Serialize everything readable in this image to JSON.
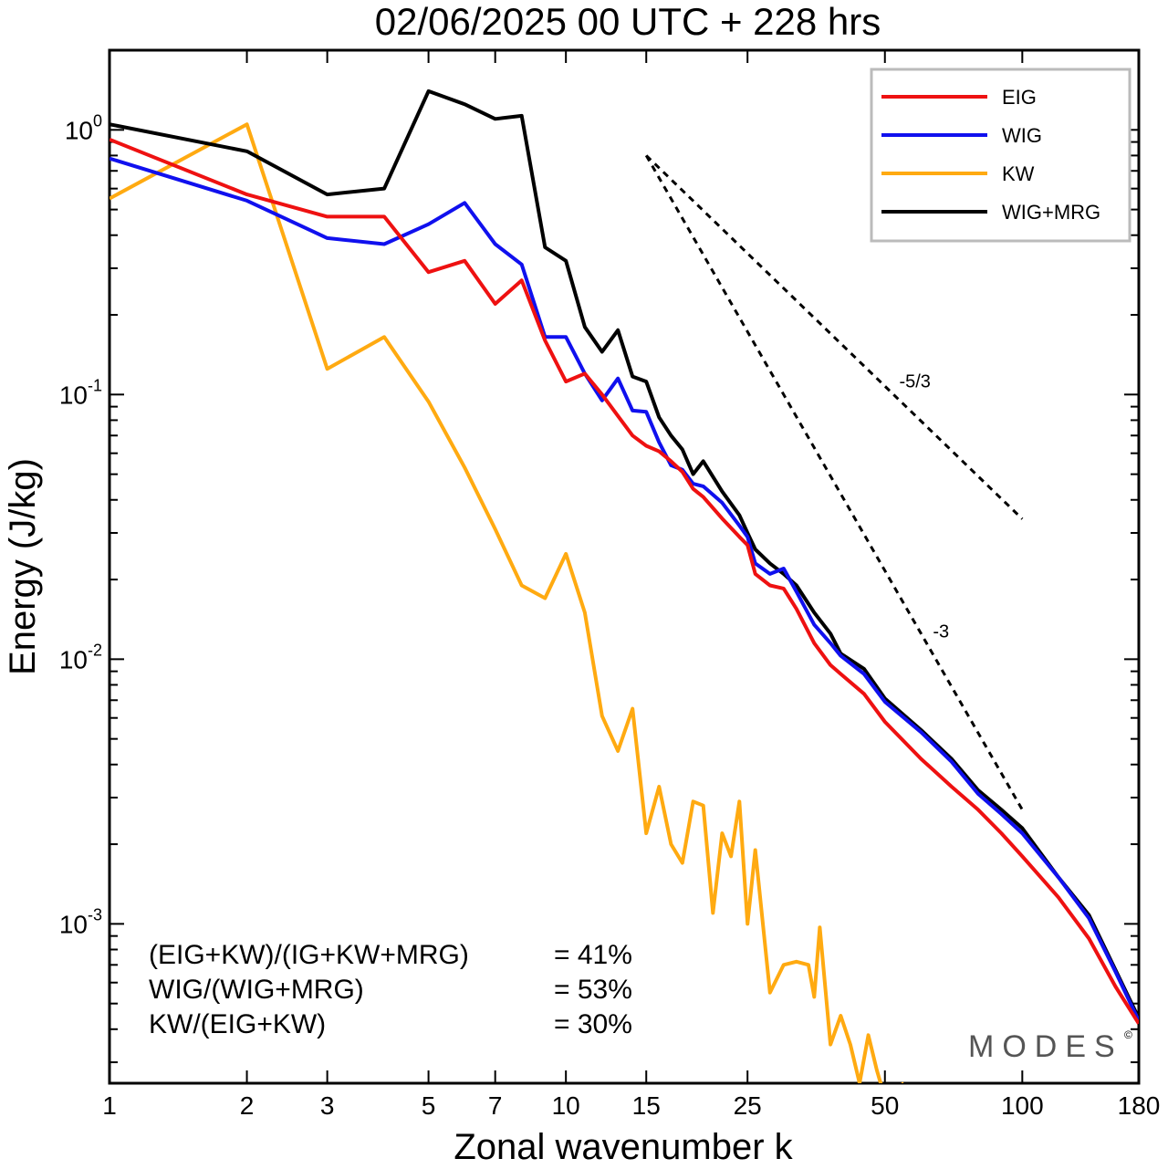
{
  "chart_data": {
    "type": "line",
    "title": "02/06/2025  00 UTC  + 228 hrs",
    "xlabel": "Zonal wavenumber k",
    "ylabel": "Energy (J/kg)",
    "x_scale": "log",
    "y_scale": "log",
    "xlim": [
      1,
      180
    ],
    "ylim": [
      0.00025,
      2.0
    ],
    "x_ticks": [
      1,
      2,
      3,
      5,
      7,
      10,
      15,
      25,
      50,
      100,
      180
    ],
    "x_tick_labels": [
      "1",
      "2",
      "3",
      "5",
      "7",
      "10",
      "15",
      "25",
      "50",
      "100",
      "180"
    ],
    "y_ticks": [
      {
        "value": 1,
        "base": "10",
        "exp": "0"
      },
      {
        "value": 0.1,
        "base": "10",
        "exp": "-1"
      },
      {
        "value": 0.01,
        "base": "10",
        "exp": "-2"
      },
      {
        "value": 0.001,
        "base": "10",
        "exp": "-3"
      }
    ],
    "grid": false,
    "legend_position": "top-right",
    "series": [
      {
        "name": "EIG",
        "color": "#ee1111",
        "x": [
          1,
          2,
          3,
          4,
          5,
          6,
          7,
          8,
          9,
          10,
          11,
          12,
          13,
          14,
          15,
          16,
          17,
          18,
          19,
          20,
          22,
          24,
          25,
          26,
          28,
          30,
          32,
          35,
          38,
          40,
          45,
          50,
          60,
          70,
          80,
          90,
          100,
          120,
          140,
          160,
          180
        ],
        "y": [
          0.92,
          0.57,
          0.47,
          0.47,
          0.29,
          0.32,
          0.22,
          0.27,
          0.16,
          0.112,
          0.12,
          0.1,
          0.083,
          0.07,
          0.064,
          0.061,
          0.056,
          0.051,
          0.044,
          0.041,
          0.034,
          0.029,
          0.027,
          0.021,
          0.019,
          0.0185,
          0.0155,
          0.0115,
          0.0095,
          0.0088,
          0.0074,
          0.0058,
          0.0042,
          0.0033,
          0.0027,
          0.0022,
          0.0018,
          0.00126,
          0.00088,
          0.00058,
          0.00042
        ]
      },
      {
        "name": "WIG",
        "color": "#1010ee",
        "x": [
          1,
          2,
          3,
          4,
          5,
          6,
          7,
          8,
          9,
          10,
          11,
          12,
          13,
          14,
          15,
          16,
          17,
          18,
          19,
          20,
          22,
          24,
          25,
          26,
          28,
          30,
          32,
          35,
          38,
          40,
          45,
          50,
          60,
          70,
          80,
          90,
          100,
          120,
          140,
          160,
          180
        ],
        "y": [
          0.78,
          0.54,
          0.39,
          0.37,
          0.44,
          0.53,
          0.37,
          0.31,
          0.165,
          0.165,
          0.12,
          0.095,
          0.115,
          0.087,
          0.086,
          0.066,
          0.054,
          0.052,
          0.046,
          0.045,
          0.039,
          0.032,
          0.029,
          0.023,
          0.021,
          0.022,
          0.018,
          0.0135,
          0.0115,
          0.0103,
          0.0088,
          0.0069,
          0.0053,
          0.0041,
          0.0031,
          0.0026,
          0.0022,
          0.0015,
          0.00105,
          0.00066,
          0.00043
        ]
      },
      {
        "name": "KW",
        "color": "#ffaa11",
        "x": [
          1,
          2,
          3,
          4,
          5,
          6,
          7,
          8,
          9,
          10,
          11,
          12,
          13,
          14,
          15,
          16,
          17,
          18,
          19,
          20,
          21,
          22,
          23,
          24,
          25,
          26,
          28,
          30,
          32,
          34,
          35,
          36,
          38,
          40,
          42,
          44,
          46,
          48,
          50,
          55
        ],
        "y": [
          0.55,
          1.05,
          0.125,
          0.165,
          0.094,
          0.053,
          0.031,
          0.019,
          0.017,
          0.025,
          0.015,
          0.0061,
          0.0045,
          0.0065,
          0.0022,
          0.0033,
          0.002,
          0.0017,
          0.0029,
          0.0028,
          0.0011,
          0.0022,
          0.0018,
          0.0029,
          0.001,
          0.0019,
          0.00055,
          0.0007,
          0.00072,
          0.0007,
          0.00053,
          0.00097,
          0.00035,
          0.00045,
          0.00035,
          0.00025,
          0.00038,
          0.00028,
          0.00022,
          0.00025
        ]
      },
      {
        "name": "WIG+MRG",
        "color": "#000000",
        "x": [
          1,
          2,
          3,
          4,
          5,
          6,
          7,
          8,
          9,
          10,
          11,
          12,
          13,
          14,
          15,
          16,
          17,
          18,
          19,
          20,
          22,
          24,
          25,
          26,
          28,
          30,
          32,
          35,
          38,
          40,
          45,
          50,
          60,
          70,
          80,
          90,
          100,
          120,
          140,
          160,
          180
        ],
        "y": [
          1.05,
          0.83,
          0.57,
          0.6,
          1.4,
          1.25,
          1.1,
          1.13,
          0.36,
          0.32,
          0.18,
          0.145,
          0.175,
          0.117,
          0.112,
          0.082,
          0.07,
          0.062,
          0.05,
          0.056,
          0.043,
          0.035,
          0.03,
          0.026,
          0.023,
          0.021,
          0.019,
          0.015,
          0.0125,
          0.0105,
          0.0092,
          0.0071,
          0.0054,
          0.0042,
          0.0032,
          0.0027,
          0.0023,
          0.0015,
          0.00108,
          0.00067,
          0.00044
        ]
      }
    ],
    "reference_slopes": [
      {
        "label": "-5/3",
        "exponent": -1.6667,
        "k_start": 15,
        "k_end": 100,
        "e_start": 0.8
      },
      {
        "label": "-3",
        "exponent": -3,
        "k_start": 15,
        "k_end": 100,
        "e_start": 0.8
      }
    ],
    "statistics": [
      {
        "label": "(EIG+KW)/(IG+KW+MRG)",
        "value": "= 41%"
      },
      {
        "label": "WIG/(WIG+MRG)",
        "value": "= 53%"
      },
      {
        "label": "KW/(EIG+KW)",
        "value": "= 30%"
      }
    ]
  },
  "logo": {
    "text": "MODES",
    "mark": "©"
  }
}
